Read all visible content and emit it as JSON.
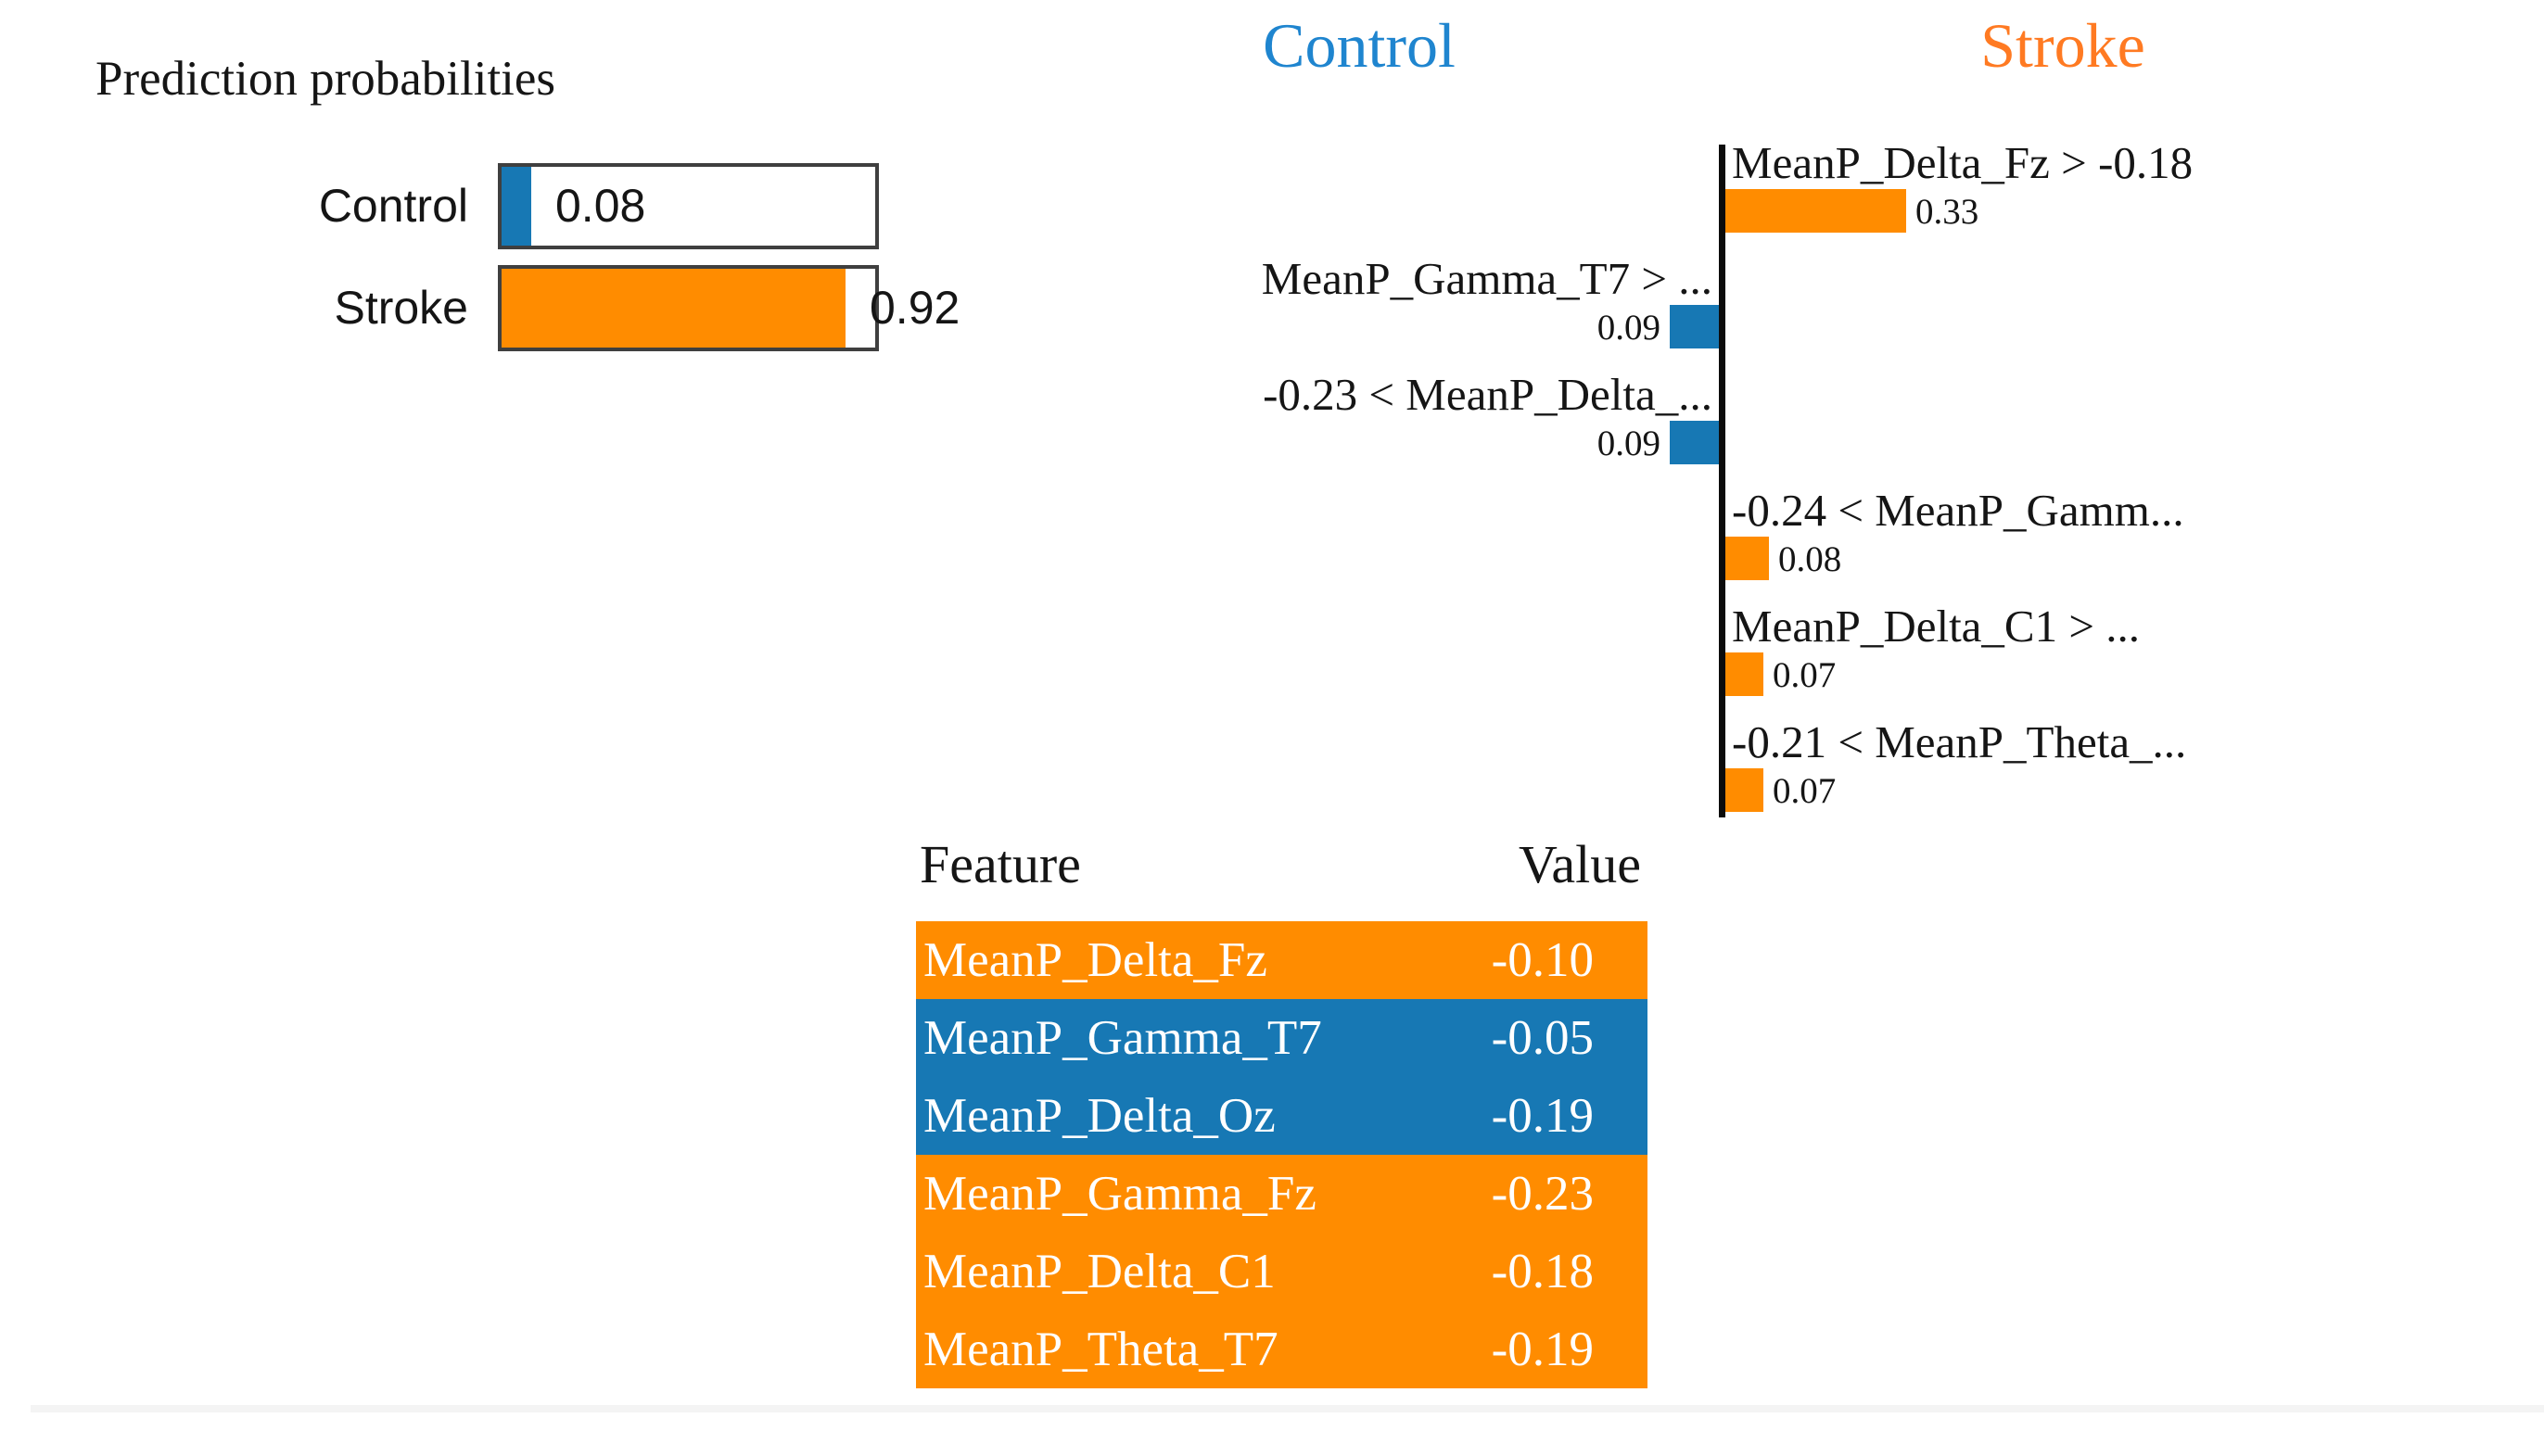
{
  "colors": {
    "control": "#1778b4",
    "stroke": "#ff8c00",
    "control_header": "#1f85cf",
    "stroke_header": "#ff7a22",
    "bar_border": "#3f3f3f",
    "text": "#151515"
  },
  "prediction_probabilities": {
    "title": "Prediction probabilities",
    "items": [
      {
        "label": "Control",
        "value": "0.08",
        "fraction": 0.08,
        "class": "control"
      },
      {
        "label": "Stroke",
        "value": "0.92",
        "fraction": 0.92,
        "class": "stroke"
      }
    ]
  },
  "explanation_chart": {
    "left_header": "Control",
    "right_header": "Stroke",
    "bars": [
      {
        "label": "MeanP_Delta_Fz > -0.18",
        "value": "0.33",
        "weight": 0.33,
        "side": "right"
      },
      {
        "label": "MeanP_Gamma_T7 > ...",
        "value": "0.09",
        "weight": 0.09,
        "side": "left"
      },
      {
        "label": "-0.23 < MeanP_Delta_...",
        "value": "0.09",
        "weight": 0.09,
        "side": "left"
      },
      {
        "label": "-0.24 < MeanP_Gamm...",
        "value": "0.08",
        "weight": 0.08,
        "side": "right"
      },
      {
        "label": "MeanP_Delta_C1 > ...",
        "value": "0.07",
        "weight": 0.07,
        "side": "right"
      },
      {
        "label": "-0.21 < MeanP_Theta_...",
        "value": "0.07",
        "weight": 0.07,
        "side": "right"
      }
    ]
  },
  "feature_table": {
    "feature_header": "Feature",
    "value_header": "Value",
    "rows": [
      {
        "feature": "MeanP_Delta_Fz",
        "value": "-0.10",
        "class": "stroke"
      },
      {
        "feature": "MeanP_Gamma_T7",
        "value": "-0.05",
        "class": "control"
      },
      {
        "feature": "MeanP_Delta_Oz",
        "value": "-0.19",
        "class": "control"
      },
      {
        "feature": "MeanP_Gamma_Fz",
        "value": "-0.23",
        "class": "stroke"
      },
      {
        "feature": "MeanP_Delta_C1",
        "value": "-0.18",
        "class": "stroke"
      },
      {
        "feature": "MeanP_Theta_T7",
        "value": "-0.19",
        "class": "stroke"
      }
    ]
  },
  "chart_data": [
    {
      "type": "bar",
      "title": "Prediction probabilities",
      "orientation": "horizontal",
      "categories": [
        "Control",
        "Stroke"
      ],
      "values": [
        0.08,
        0.92
      ],
      "xlim": [
        0,
        1
      ],
      "colors": [
        "#1778b4",
        "#ff8c00"
      ],
      "grid": false,
      "legend_position": "none"
    },
    {
      "type": "bar",
      "title": "Local explanation: Control (left, blue, negative) vs Stroke (right, orange, positive)",
      "orientation": "horizontal",
      "categories": [
        "MeanP_Delta_Fz > -0.18",
        "MeanP_Gamma_T7 > ...",
        "-0.23 < MeanP_Delta_...",
        "-0.24 < MeanP_Gamm...",
        "MeanP_Delta_C1 > ...",
        "-0.21 < MeanP_Theta_..."
      ],
      "values": [
        0.33,
        -0.09,
        -0.09,
        0.08,
        0.07,
        0.07
      ],
      "data_labels": [
        "0.33",
        "0.09",
        "0.09",
        "0.08",
        "0.07",
        "0.07"
      ],
      "xlim": [
        -0.4,
        0.4
      ],
      "grid": false,
      "legend_entries": [
        "Control",
        "Stroke"
      ],
      "legend_position": "top"
    },
    {
      "type": "table",
      "columns": [
        "Feature",
        "Value"
      ],
      "rows": [
        [
          "MeanP_Delta_Fz",
          -0.1
        ],
        [
          "MeanP_Gamma_T7",
          -0.05
        ],
        [
          "MeanP_Delta_Oz",
          -0.19
        ],
        [
          "MeanP_Gamma_Fz",
          -0.23
        ],
        [
          "MeanP_Delta_C1",
          -0.18
        ],
        [
          "MeanP_Theta_T7",
          -0.19
        ]
      ],
      "row_highlight_class": [
        "Stroke",
        "Control",
        "Control",
        "Stroke",
        "Stroke",
        "Stroke"
      ]
    }
  ]
}
